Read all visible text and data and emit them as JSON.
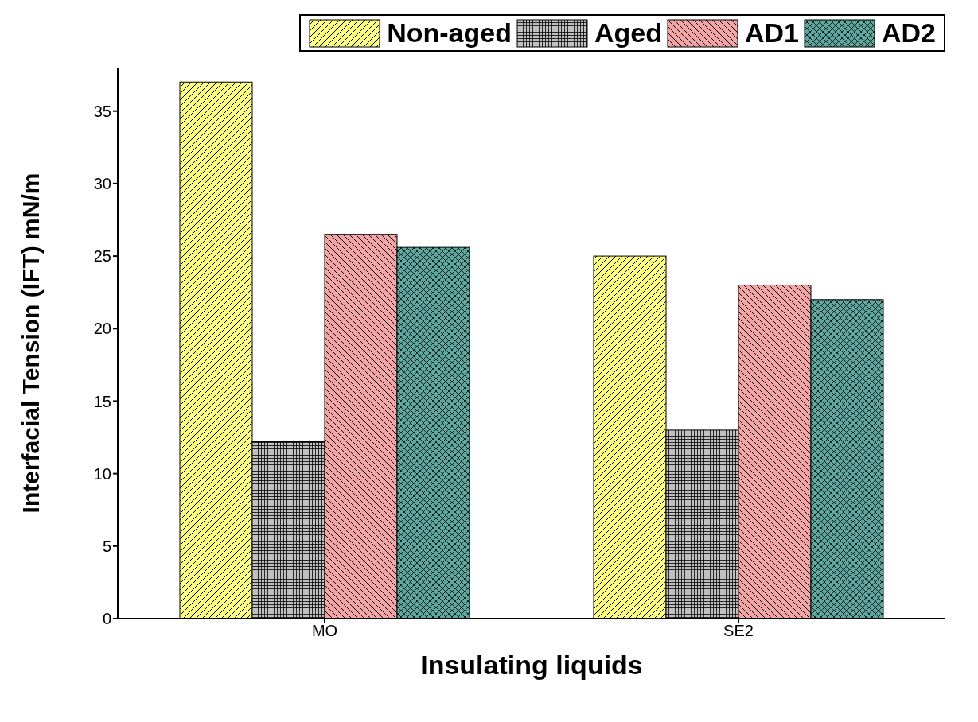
{
  "chart_data": {
    "type": "bar",
    "xlabel": "Insulating liquids",
    "ylabel": "Interfacial Tension (IFT) mN/m",
    "categories": [
      "MO",
      "SE2"
    ],
    "series": [
      {
        "name": "Non-aged",
        "color": "#ffff80",
        "values": [
          37,
          25
        ]
      },
      {
        "name": "Aged",
        "color": "#c0c0c0",
        "values": [
          12.2,
          13
        ]
      },
      {
        "name": "AD1",
        "color": "#f4a4a4",
        "values": [
          26.5,
          23
        ]
      },
      {
        "name": "AD2",
        "color": "#5fa8a0",
        "values": [
          25.6,
          22
        ]
      }
    ],
    "ylim": [
      0,
      38
    ],
    "yticks": [
      0,
      5,
      10,
      15,
      20,
      25,
      30,
      35
    ],
    "legend": "top right"
  }
}
